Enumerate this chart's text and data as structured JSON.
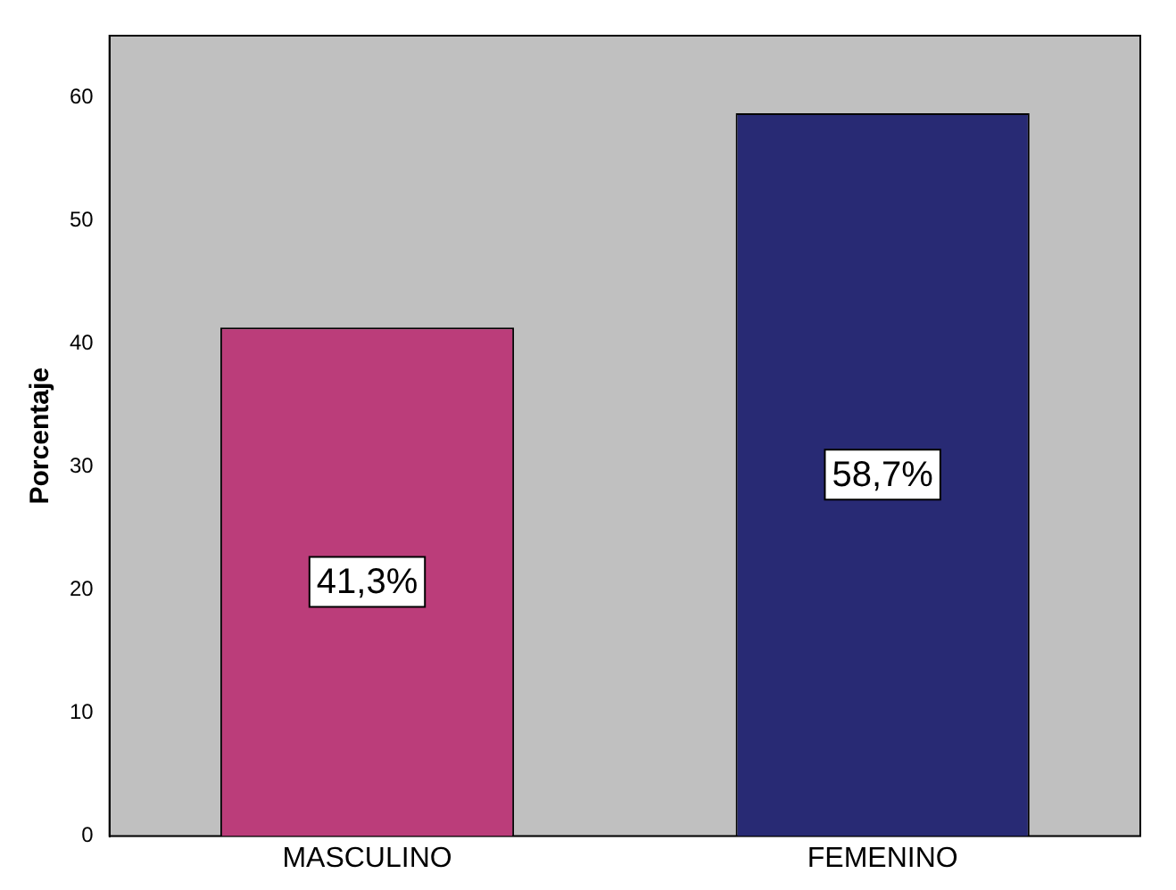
{
  "chart_data": {
    "type": "bar",
    "ylabel": "Porcentaje",
    "categories": [
      "MASCULINO",
      "FEMENINO"
    ],
    "values": [
      41.3,
      58.7
    ],
    "colors": [
      "#bb3d7a",
      "#282a74"
    ],
    "value_labels": [
      "41,3%",
      "58,7%"
    ],
    "ylim": [
      0,
      65
    ],
    "yticks": [
      0,
      10,
      20,
      30,
      40,
      50,
      60
    ],
    "grid": false,
    "legend": false
  }
}
